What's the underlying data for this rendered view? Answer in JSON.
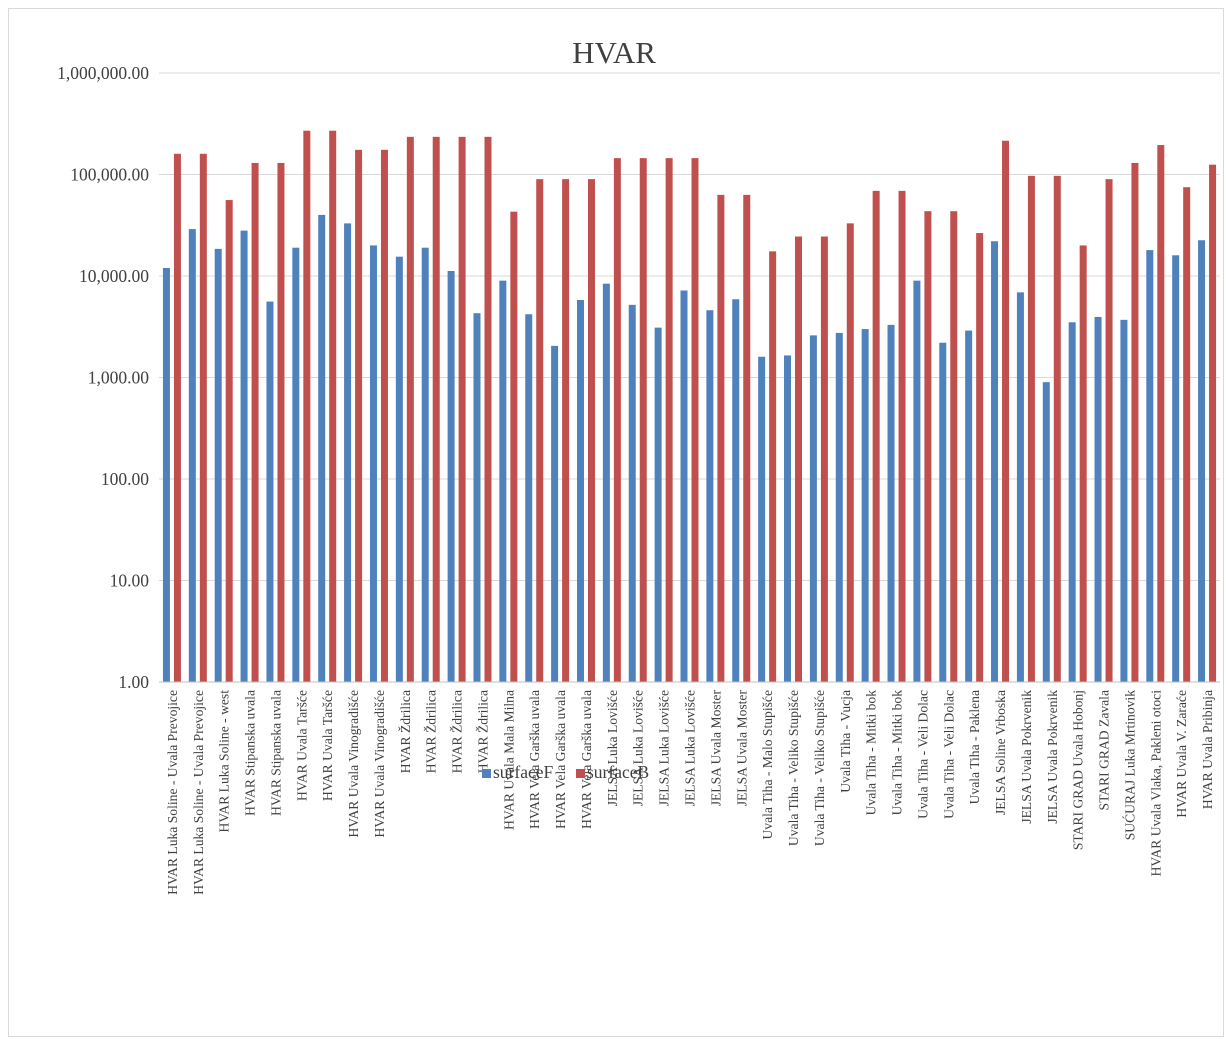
{
  "chart_data": {
    "type": "bar",
    "title": "HVAR",
    "xlabel": "",
    "ylabel": "",
    "y_scale": "log",
    "ylim": [
      1,
      1000000
    ],
    "y_ticks": [
      1,
      10,
      100,
      1000,
      10000,
      100000,
      1000000
    ],
    "y_tick_labels": [
      "1.00",
      "10.00",
      "100.00",
      "1,000.00",
      "10,000.00",
      "100,000.00",
      "1,000,000.00"
    ],
    "grid": true,
    "legend_position": "bottom",
    "categories": [
      "HVAR Luka Soline - Uvala Prevojice",
      "HVAR Luka Soline - Uvala Prevojice",
      "HVAR Luka Soline - west",
      "HVAR Stipanska uvala",
      "HVAR Stipanska uvala",
      "HVAR Uvala Taršće",
      "HVAR Uvala Taršće",
      "HVAR Uvala Vinogradišće",
      "HVAR Uvala Vinogradišće",
      "HVAR Ždrilica",
      "HVAR Ždrilica",
      "HVAR Ždrilica",
      "HVAR Ždrilica",
      "HVAR Uvala Mala Milna",
      "HVAR Vela Garška uvala",
      "HVAR Vela Garška uvala",
      "HVAR Vela Garška uvala",
      "JELSA Luka Lovišće",
      "JELSA Luka Lovišće",
      "JELSA Luka Lovišće",
      "JELSA Luka Lovišće",
      "JELSA Uvala Moster",
      "JELSA Uvala Moster",
      "Uvala Tiha - Malo Stupišće",
      "Uvala Tiha - Veliko Stupišće",
      "Uvala Tiha - Veliko Stupišće",
      "Uvala Tiha - Vucja",
      "Uvala Tiha - Mitki bok",
      "Uvala Tiha - Mitki bok",
      "Uvala Tiha - Veli Dolac",
      "Uvala Tiha - Veli Dolac",
      "Uvala Tiha - Paklena",
      "JELSA Soline  Vrboska",
      "JELSA Uvala Pokrvenik",
      "JELSA Uvala Pokrvenik",
      "STARI GRAD Uvala Hobonj",
      "STARI GRAD Zavala",
      "SUĆURAJ Luka Mrtinovik",
      "HVAR Uvala Vlaka, Pakleni otoci",
      "HVAR Uvala V. Zaraće",
      "HVAR Uvala Pribinja"
    ],
    "series": [
      {
        "name": "surfaceF",
        "color": "#4f81bd",
        "values": [
          12000,
          29000,
          18500,
          28000,
          5600,
          19000,
          40000,
          33000,
          20000,
          15500,
          19000,
          11200,
          4300,
          9000,
          4200,
          2050,
          5800,
          8400,
          5200,
          3100,
          7200,
          4600,
          5900,
          1600,
          1650,
          2600,
          2750,
          3000,
          3300,
          9000,
          2200,
          2900,
          22000,
          6900,
          900,
          3500,
          3950,
          3700,
          18000,
          16000,
          22500
        ]
      },
      {
        "name": "surfaceB",
        "color": "#c0504d",
        "values": [
          160000,
          160000,
          56000,
          130000,
          130000,
          270000,
          270000,
          175000,
          175000,
          235000,
          235000,
          235000,
          235000,
          43000,
          90000,
          90000,
          90000,
          145000,
          145000,
          145000,
          145000,
          63000,
          63000,
          17500,
          24500,
          24500,
          33000,
          69000,
          69000,
          43500,
          43500,
          26500,
          215000,
          97000,
          97000,
          20000,
          90000,
          130000,
          195000,
          75000,
          125000
        ]
      }
    ]
  }
}
